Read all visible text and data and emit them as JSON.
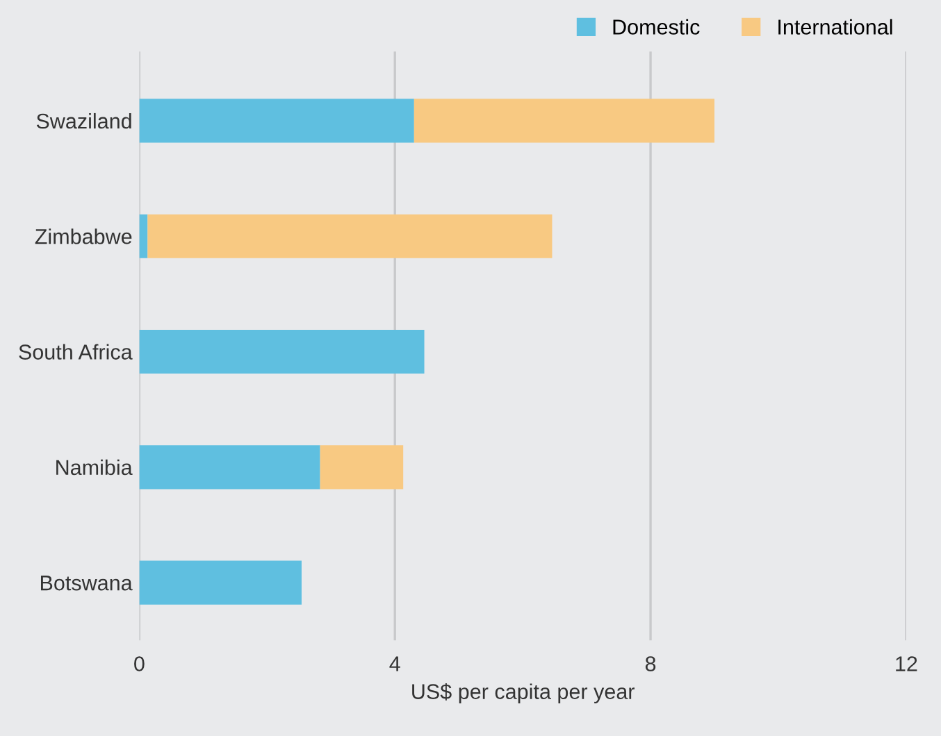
{
  "chart_data": {
    "type": "bar",
    "orientation": "horizontal",
    "stacked": true,
    "xlabel": "US$ per capita per year",
    "categories": [
      "Swaziland",
      "Zimbabwe",
      "South Africa",
      "Namibia",
      "Botswana"
    ],
    "series": [
      {
        "name": "Domestic",
        "color": "#5fbfe0",
        "values": [
          4.3,
          0.13,
          4.46,
          2.83,
          2.54
        ]
      },
      {
        "name": "International",
        "color": "#f8c982",
        "values": [
          4.7,
          6.33,
          null,
          1.3,
          null
        ]
      }
    ],
    "xlim": [
      0,
      12
    ],
    "xticks": [
      0,
      4,
      8,
      12
    ],
    "grid": "x",
    "legend": "top right"
  }
}
